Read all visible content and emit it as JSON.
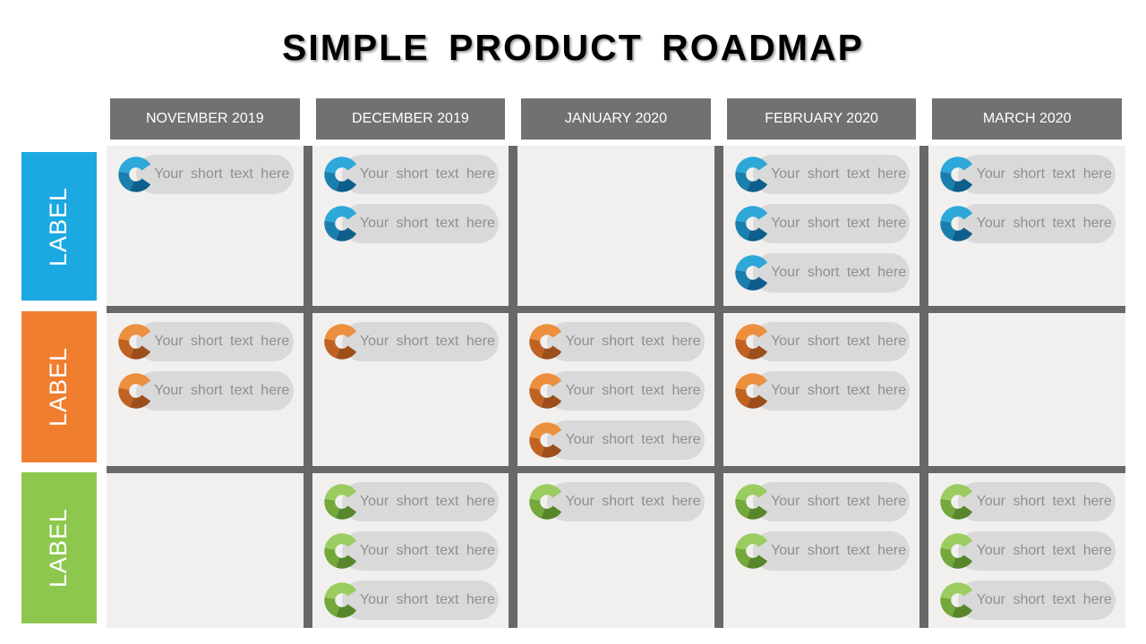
{
  "title": "SIMPLE PRODUCT ROADMAP",
  "columns": [
    "NOVEMBER 2019",
    "DECEMBER 2019",
    "JANUARY 2020",
    "FEBRUARY 2020",
    "MARCH 2020"
  ],
  "item_text": "Your short text here",
  "rows": [
    {
      "label": "LABEL",
      "theme": "blue",
      "cells": [
        [
          "Your short text here"
        ],
        [
          "Your short text here",
          "Your short text here"
        ],
        [],
        [
          "Your short text here",
          "Your short text here",
          "Your short text here"
        ],
        [
          "Your short text here",
          "Your short text here"
        ]
      ]
    },
    {
      "label": "LABEL",
      "theme": "orange",
      "cells": [
        [
          "Your short text here",
          "Your short text here"
        ],
        [
          "Your short text here"
        ],
        [
          "Your short text here",
          "Your short text here",
          "Your short text here"
        ],
        [
          "Your short text here",
          "Your short text here"
        ],
        []
      ]
    },
    {
      "label": "LABEL",
      "theme": "green",
      "cells": [
        [],
        [
          "Your short text here",
          "Your short text here",
          "Your short text here"
        ],
        [
          "Your short text here"
        ],
        [
          "Your short text here",
          "Your short text here"
        ],
        [
          "Your short text here",
          "Your short text here",
          "Your short text here"
        ]
      ]
    }
  ],
  "colors": {
    "title_color": "#000000",
    "header_bg": "#737070",
    "grid_bar": "#6A6767",
    "cell_bg": "#F1F0EF",
    "pill_bg": "#D9D9D9",
    "pill_text": "#8F8F8F",
    "blue_label": "#1CA8E0",
    "blue_icon_light": "#2EA7D9",
    "blue_icon_mid": "#1B7FAE",
    "blue_icon_dark": "#0E5E8C",
    "orange_label": "#EF7F2F",
    "orange_icon_light": "#EC8F3E",
    "orange_icon_mid": "#C06322",
    "orange_icon_dark": "#9C4E1B",
    "green_label": "#8EC74E",
    "green_icon_light": "#9ACC5F",
    "green_icon_mid": "#74A83B",
    "green_icon_dark": "#57862B"
  }
}
